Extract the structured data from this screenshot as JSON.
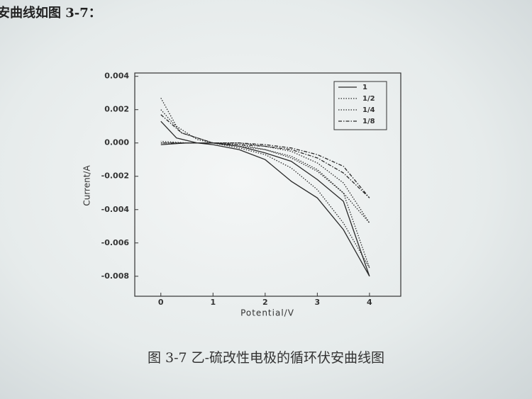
{
  "header_text": "安曲线如图 3-7：",
  "caption": "图 3-7 乙-硫改性电极的循环伏安曲线图",
  "chart_data": {
    "type": "line",
    "x_label": "Potential/V",
    "y_label": "Current/A",
    "xlim": [
      -0.5,
      4.6
    ],
    "xticks": [
      0,
      1,
      2,
      3,
      4
    ],
    "ylim": [
      -0.0092,
      0.0042
    ],
    "yticks": [
      0.004,
      0.002,
      {
        "value": 0,
        "label": "0.000"
      },
      -0.002,
      -0.004,
      -0.006,
      -0.008
    ],
    "legend": "upper right",
    "series": [
      {
        "name": "1",
        "color": "#2a2a2a",
        "style": "solid",
        "x": [
          0,
          0.3,
          0.7,
          1,
          1.5,
          2,
          2.5,
          3,
          3.5,
          4,
          3.5,
          3,
          2.5,
          2,
          1.5,
          1,
          0.5,
          0
        ],
        "values": [
          0.0013,
          0.0003,
          0,
          -0.0001,
          -0.0004,
          -0.001,
          -0.0023,
          -0.0033,
          -0.0052,
          -0.008,
          -0.0035,
          -0.0022,
          -0.0011,
          -0.0006,
          -0.0002,
          0,
          0,
          -0.0001
        ]
      },
      {
        "name": "1/2",
        "color": "#2a2a2a",
        "style": "dotted",
        "x": [
          0,
          0.3,
          0.7,
          1,
          1.5,
          2,
          2.5,
          3,
          3.5,
          4,
          3.5,
          3,
          2.5,
          2,
          1.5,
          1,
          0.5,
          0
        ],
        "values": [
          0.0027,
          0.001,
          0.0002,
          0,
          -0.0003,
          -0.0007,
          -0.0015,
          -0.0028,
          -0.0048,
          -0.0075,
          -0.003,
          -0.0017,
          -0.0009,
          -0.0004,
          -0.0001,
          0,
          0,
          0.0001
        ]
      },
      {
        "name": "1/4",
        "color": "#2a2a2a",
        "style": "dotted",
        "x": [
          0,
          0.4,
          1,
          1.5,
          2,
          2.5,
          3,
          3.5,
          4,
          3.5,
          3,
          2.5,
          2,
          1.5,
          1,
          0.5,
          0
        ],
        "values": [
          0.002,
          0.0006,
          0,
          -0.0002,
          -0.0004,
          -0.0008,
          -0.0016,
          -0.003,
          -0.0048,
          -0.0024,
          -0.0012,
          -0.0005,
          -0.0002,
          0,
          0,
          0,
          0
        ]
      },
      {
        "name": "1/8",
        "color": "#2a2a2a",
        "style": "dashdot",
        "x": [
          0,
          0.4,
          1,
          1.5,
          2,
          2.5,
          3,
          3.5,
          4,
          3.5,
          3,
          2.5,
          2,
          1.5,
          1,
          0.5,
          0
        ],
        "values": [
          0.0017,
          0.0006,
          0,
          -0.0001,
          -0.0002,
          -0.0004,
          -0.0009,
          -0.0018,
          -0.0033,
          -0.0014,
          -0.0007,
          -0.0003,
          -0.0001,
          0,
          0,
          0,
          0
        ]
      }
    ]
  }
}
